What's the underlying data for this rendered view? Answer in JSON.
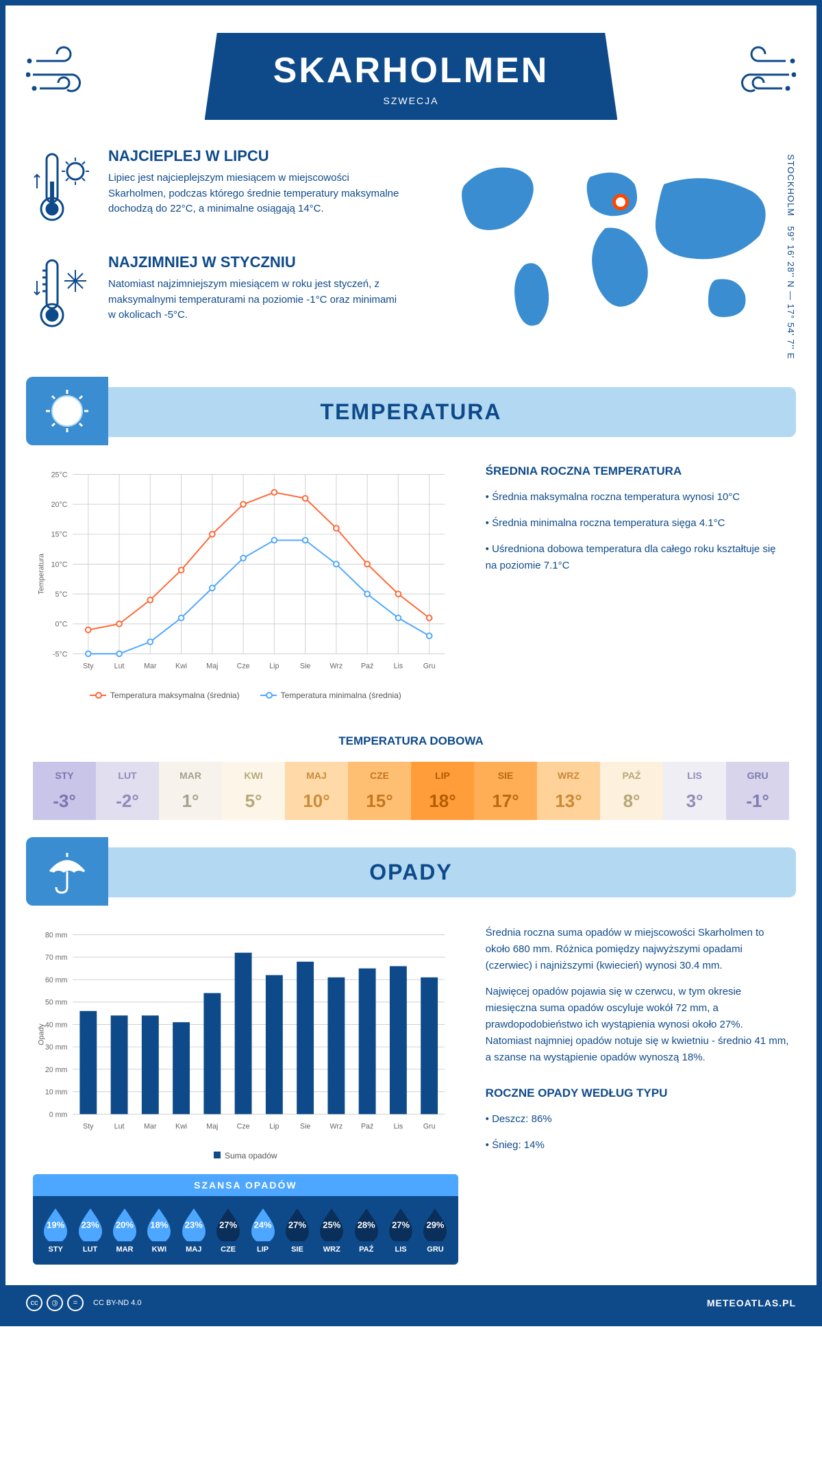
{
  "header": {
    "title": "SKARHOLMEN",
    "subtitle": "SZWECJA"
  },
  "intro": {
    "hot": {
      "title": "NAJCIEPLEJ W LIPCU",
      "text": "Lipiec jest najcieplejszym miesiącem w miejscowości Skarholmen, podczas którego średnie temperatury maksymalne dochodzą do 22°C, a minimalne osiągają 14°C."
    },
    "cold": {
      "title": "NAJZIMNIEJ W STYCZNIU",
      "text": "Natomiast najzimniejszym miesiącem w roku jest styczeń, z maksymalnymi temperaturami na poziomie -1°C oraz minimami w okolicach -5°C."
    },
    "coords": "59° 16' 28'' N — 17° 54' 7'' E",
    "city_label": "STOCKHOLM"
  },
  "temp": {
    "section_title": "TEMPERATURA",
    "side": {
      "title": "ŚREDNIA ROCZNA TEMPERATURA",
      "b1": "• Średnia maksymalna roczna temperatura wynosi 10°C",
      "b2": "• Średnia minimalna roczna temperatura sięga 4.1°C",
      "b3": "• Uśredniona dobowa temperatura dla całego roku kształtuje się na poziomie 7.1°C"
    },
    "chart": {
      "type": "line",
      "months": [
        "Sty",
        "Lut",
        "Mar",
        "Kwi",
        "Maj",
        "Cze",
        "Lip",
        "Sie",
        "Wrz",
        "Paź",
        "Lis",
        "Gru"
      ],
      "y_ticks": [
        "-5°C",
        "0°C",
        "5°C",
        "10°C",
        "15°C",
        "20°C",
        "25°C"
      ],
      "y_min": -5,
      "y_max": 25,
      "max_series": [
        -1,
        0,
        4,
        9,
        15,
        20,
        22,
        21,
        16,
        10,
        5,
        1
      ],
      "min_series": [
        -5,
        -5,
        -3,
        1,
        6,
        11,
        14,
        14,
        10,
        5,
        1,
        -2
      ],
      "max_color": "#ff6633",
      "min_color": "#4da6ff",
      "grid_color": "#d0d0d0",
      "ylabel": "Temperatura",
      "legend_max": "Temperatura maksymalna (średnia)",
      "legend_min": "Temperatura minimalna (średnia)"
    },
    "daily": {
      "title": "TEMPERATURA DOBOWA",
      "months": [
        "STY",
        "LUT",
        "MAR",
        "KWI",
        "MAJ",
        "CZE",
        "LIP",
        "SIE",
        "WRZ",
        "PAŹ",
        "LIS",
        "GRU"
      ],
      "values": [
        "-3°",
        "-2°",
        "1°",
        "5°",
        "10°",
        "15°",
        "18°",
        "17°",
        "13°",
        "8°",
        "3°",
        "-1°"
      ],
      "bg_colors": [
        "#c9c5e8",
        "#e0deef",
        "#f7f3ec",
        "#fdf6e8",
        "#ffd9a8",
        "#ffbf73",
        "#ff9d3b",
        "#ffae55",
        "#ffd29a",
        "#fdf0dc",
        "#efeef5",
        "#d7d4eb"
      ],
      "text_colors": [
        "#7a75b0",
        "#8f8bb8",
        "#a8a090",
        "#b5a878",
        "#c98d3a",
        "#c47720",
        "#b65c00",
        "#bc6a12",
        "#c88a38",
        "#b5a878",
        "#928db5",
        "#807bb0"
      ]
    }
  },
  "rain": {
    "section_title": "OPADY",
    "side": {
      "p1": "Średnia roczna suma opadów w miejscowości Skarholmen to około 680 mm. Różnica pomiędzy najwyższymi opadami (czerwiec) i najniższymi (kwiecień) wynosi 30.4 mm.",
      "p2": "Najwięcej opadów pojawia się w czerwcu, w tym okresie miesięczna suma opadów oscyluje wokół 72 mm, a prawdopodobieństwo ich wystąpienia wynosi około 27%. Natomiast najmniej opadów notuje się w kwietniu - średnio 41 mm, a szanse na wystąpienie opadów wynoszą 18%.",
      "type_title": "ROCZNE OPADY WEDŁUG TYPU",
      "type1": "• Deszcz: 86%",
      "type2": "• Śnieg: 14%"
    },
    "chart": {
      "type": "bar",
      "months": [
        "Sty",
        "Lut",
        "Mar",
        "Kwi",
        "Maj",
        "Cze",
        "Lip",
        "Sie",
        "Wrz",
        "Paź",
        "Lis",
        "Gru"
      ],
      "values": [
        46,
        44,
        44,
        41,
        54,
        72,
        62,
        68,
        61,
        65,
        66,
        61
      ],
      "y_ticks": [
        0,
        10,
        20,
        30,
        40,
        50,
        60,
        70,
        80
      ],
      "y_max": 80,
      "bar_color": "#0e4a8a",
      "grid_color": "#d0d0d0",
      "ylabel": "Opady",
      "legend": "Suma opadów"
    },
    "chance": {
      "title": "SZANSA OPADÓW",
      "months": [
        "STY",
        "LUT",
        "MAR",
        "KWI",
        "MAJ",
        "CZE",
        "LIP",
        "SIE",
        "WRZ",
        "PAŹ",
        "LIS",
        "GRU"
      ],
      "values": [
        "19%",
        "23%",
        "20%",
        "18%",
        "23%",
        "27%",
        "24%",
        "27%",
        "25%",
        "28%",
        "27%",
        "29%"
      ],
      "threshold": 25,
      "light_color": "#4da6ff",
      "dark_color": "#0a2f5a"
    }
  },
  "footer": {
    "license": "CC BY-ND 4.0",
    "site": "METEOATLAS.PL"
  }
}
